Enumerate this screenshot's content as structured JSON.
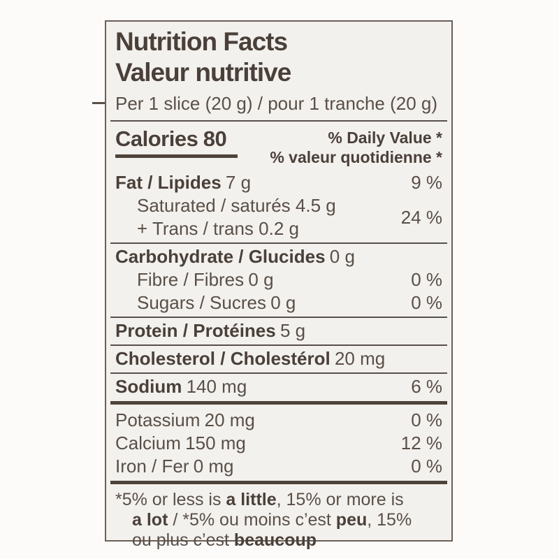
{
  "label": {
    "title_en": "Nutrition Facts",
    "title_fr": "Valeur nutritive",
    "serving": "Per 1 slice (20 g) / pour 1 tranche (20 g)",
    "calories_label": "Calories",
    "calories_value": "80",
    "daily_value_en": "% Daily Value *",
    "daily_value_fr": "% valeur quotidienne *",
    "rows": [
      {
        "name": "fat",
        "label": "Fat / Lipides",
        "amount": "7 g",
        "percent": "9 %"
      },
      {
        "name": "saturated-trans",
        "line1": "Saturated / saturés 4.5 g",
        "line2": "+ Trans / trans 0.2 g",
        "percent": "24 %"
      },
      {
        "name": "carbohydrate",
        "label": "Carbohydrate / Glucides",
        "amount": "0 g"
      },
      {
        "name": "fibre",
        "label": "Fibre / Fibres",
        "amount": "0 g",
        "percent": "0 %"
      },
      {
        "name": "sugars",
        "label": "Sugars / Sucres",
        "amount": "0 g",
        "percent": "0 %"
      },
      {
        "name": "protein",
        "label": "Protein / Protéines",
        "amount": "5 g"
      },
      {
        "name": "cholesterol",
        "label": "Cholesterol / Cholestérol",
        "amount": "20 mg"
      },
      {
        "name": "sodium",
        "label": "Sodium",
        "amount": "140 mg",
        "percent": "6 %"
      },
      {
        "name": "potassium",
        "label": "Potassium",
        "amount": "20 mg",
        "percent": "0 %"
      },
      {
        "name": "calcium",
        "label": "Calcium",
        "amount": "150 mg",
        "percent": "12 %"
      },
      {
        "name": "iron",
        "label": "Iron / Fer",
        "amount": "0 mg",
        "percent": "0 %"
      }
    ],
    "footnote": {
      "l1s1": "*5% or less is ",
      "l1s2": "a little",
      "l1s3": ", 15% or more is",
      "l2s1": "a lot",
      "l2s2": " / *5% ou moins c’est ",
      "l2s3": "peu",
      "l2s4": ", 15%",
      "l3s1": "ou plus c’est ",
      "l3s2": "beaucoup"
    },
    "colors": {
      "text": "#594f47",
      "bold_text": "#4a4039",
      "border": "#6a5f56",
      "label_background": "#f3f1ee",
      "page_background": "#fcfbfa"
    }
  }
}
